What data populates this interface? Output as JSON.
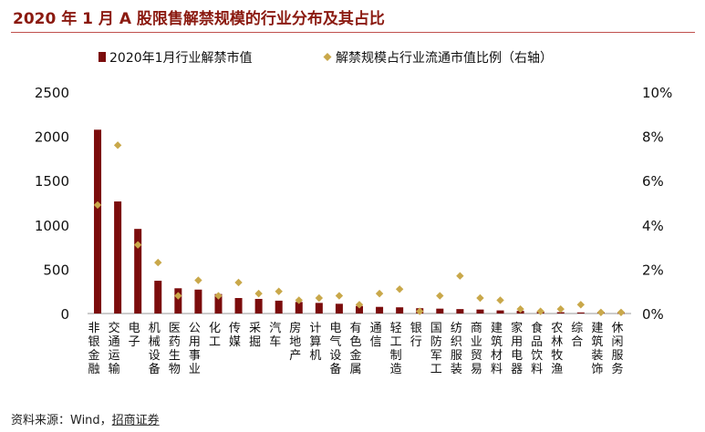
{
  "title": "2020 年 1 月 A 股限售解禁规模的行业分布及其占比",
  "source": {
    "prefix": "资料来源：Wind，",
    "brand": "招商证券"
  },
  "chart_data": {
    "type": "bar",
    "categories": [
      "非银金融",
      "交通运输",
      "电子",
      "机械设备",
      "医药生物",
      "公用事业",
      "化工",
      "传媒",
      "采掘",
      "汽车",
      "房地产",
      "计算机",
      "电气设备",
      "有色金属",
      "通信",
      "轻工制造",
      "银行",
      "国防军工",
      "纺织服装",
      "商业贸易",
      "建筑材料",
      "家用电器",
      "食品饮料",
      "农林牧渔",
      "综合",
      "建筑装饰",
      "休闲服务"
    ],
    "series": [
      {
        "name": "2020年1月行业解禁市值",
        "axis": "left",
        "mark": "bar",
        "color": "#7b0c0c",
        "values": [
          2075,
          1265,
          955,
          370,
          285,
          270,
          220,
          175,
          165,
          145,
          130,
          120,
          110,
          85,
          75,
          70,
          60,
          55,
          50,
          45,
          35,
          30,
          20,
          15,
          12,
          10,
          5
        ]
      },
      {
        "name": "解禁规模占行业流通市值比例（右轴）",
        "axis": "right",
        "mark": "diamond",
        "color": "#c9a84a",
        "values": [
          4.9,
          7.6,
          3.1,
          2.3,
          0.8,
          1.5,
          0.8,
          1.4,
          0.9,
          1.0,
          0.6,
          0.7,
          0.8,
          0.4,
          0.9,
          1.1,
          0.1,
          0.8,
          1.7,
          0.7,
          0.6,
          0.2,
          0.1,
          0.2,
          0.4,
          0.05,
          0.05
        ]
      }
    ],
    "y_left": {
      "min": 0,
      "max": 2500,
      "ticks": [
        "0",
        "500",
        "1000",
        "1500",
        "2000",
        "2500"
      ]
    },
    "y_right": {
      "min": 0,
      "max": 10,
      "ticks": [
        "0%",
        "2%",
        "4%",
        "6%",
        "8%",
        "10%"
      ]
    },
    "legend_position": "top",
    "grid": false
  }
}
